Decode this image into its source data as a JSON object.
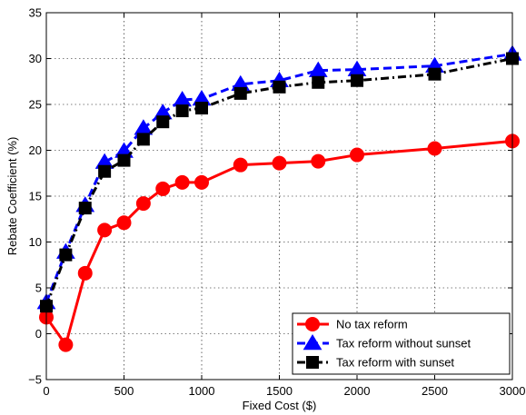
{
  "chart_data": {
    "type": "line",
    "title": "",
    "xlabel": "Fixed Cost ($)",
    "ylabel": "Rebate Coefficient (%)",
    "xlim": [
      0,
      3000
    ],
    "ylim": [
      -5,
      35
    ],
    "xticks": [
      0,
      500,
      1000,
      1500,
      2000,
      2500,
      3000
    ],
    "yticks": [
      -5,
      0,
      5,
      10,
      15,
      20,
      25,
      30,
      35
    ],
    "grid": true,
    "legend_position": "bottom-right",
    "x": [
      0,
      125,
      250,
      375,
      500,
      625,
      750,
      875,
      1000,
      1250,
      1500,
      1750,
      2000,
      2500,
      3000
    ],
    "series": [
      {
        "name": "No tax reform",
        "color": "#ff0000",
        "line_style": "solid",
        "marker": "circle",
        "values": [
          1.8,
          -1.2,
          6.6,
          11.3,
          12.1,
          14.2,
          15.8,
          16.5,
          16.5,
          18.4,
          18.6,
          18.8,
          19.5,
          20.2,
          21.0
        ]
      },
      {
        "name": "Tax reform without sunset",
        "color": "#0000ff",
        "line_style": "dashed",
        "marker": "triangle",
        "values": [
          3.4,
          8.9,
          14.0,
          18.7,
          19.9,
          22.4,
          24.1,
          25.5,
          25.6,
          27.2,
          27.6,
          28.7,
          28.8,
          29.2,
          30.5
        ]
      },
      {
        "name": "Tax reform with sunset",
        "color": "#000000",
        "line_style": "dashdot",
        "marker": "square",
        "values": [
          3.0,
          8.6,
          13.7,
          17.7,
          18.9,
          21.2,
          23.1,
          24.3,
          24.6,
          26.2,
          26.9,
          27.4,
          27.6,
          28.3,
          30.0
        ]
      }
    ]
  }
}
